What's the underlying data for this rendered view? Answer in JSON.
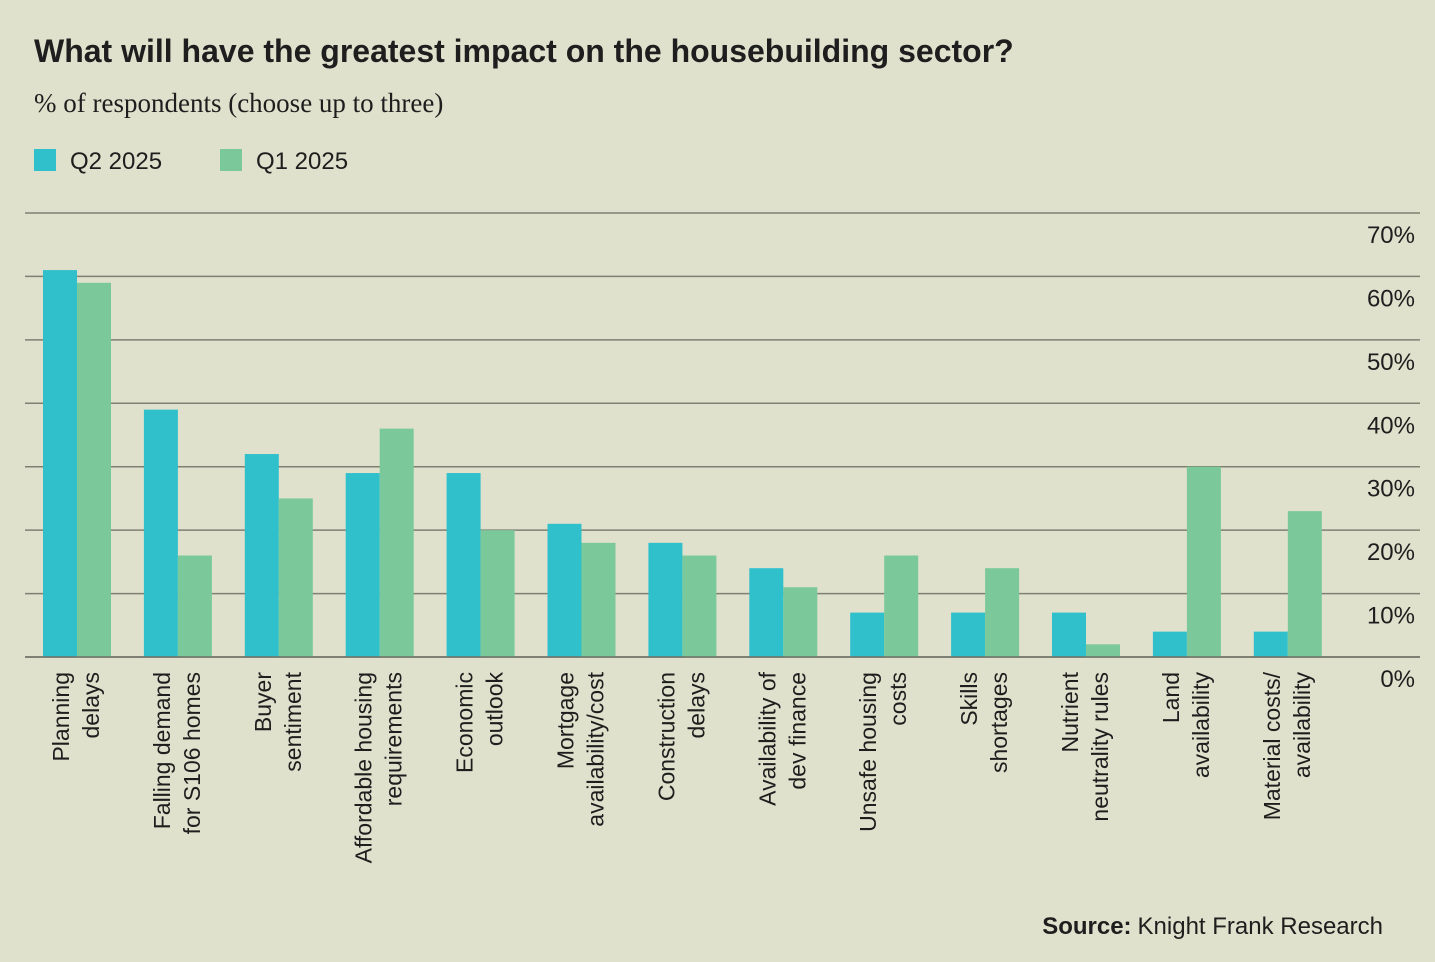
{
  "chart_data": {
    "type": "bar",
    "title": "What will have the greatest impact on the housebuilding sector?",
    "subtitle": "% of respondents (choose up to three)",
    "categories": [
      [
        "Planning",
        "delays"
      ],
      [
        "Falling demand",
        "for S106 homes"
      ],
      [
        "Buyer",
        "sentiment"
      ],
      [
        "Affordable housing",
        "requirements"
      ],
      [
        "Economic",
        "outlook"
      ],
      [
        "Mortgage",
        "availability/cost"
      ],
      [
        "Construction",
        "delays"
      ],
      [
        "Availability of",
        "dev finance"
      ],
      [
        "Unsafe housing",
        "costs"
      ],
      [
        "Skills",
        "shortages"
      ],
      [
        "Nutrient",
        "neutrality rules"
      ],
      [
        "Land",
        "availability"
      ],
      [
        "Material costs/",
        "availability"
      ]
    ],
    "series": [
      {
        "name": "Q2 2025",
        "color": "#2fc0cc",
        "values": [
          61,
          39,
          32,
          29,
          29,
          21,
          18,
          14,
          7,
          7,
          7,
          4,
          4
        ]
      },
      {
        "name": "Q1 2025",
        "color": "#7bc99a",
        "values": [
          59,
          16,
          25,
          36,
          20,
          18,
          16,
          11,
          16,
          14,
          2,
          30,
          23
        ]
      }
    ],
    "ylim": [
      0,
      70
    ],
    "yticks": [
      {
        "value": 0,
        "label": "0%"
      },
      {
        "value": 10,
        "label": "10%"
      },
      {
        "value": 20,
        "label": "20%"
      },
      {
        "value": 30,
        "label": "30%"
      },
      {
        "value": 40,
        "label": "40%"
      },
      {
        "value": 50,
        "label": "50%"
      },
      {
        "value": 60,
        "label": "60%"
      },
      {
        "value": 70,
        "label": "70%"
      }
    ],
    "grid": true,
    "source_label": "Source:",
    "source": "Knight Frank Research"
  }
}
